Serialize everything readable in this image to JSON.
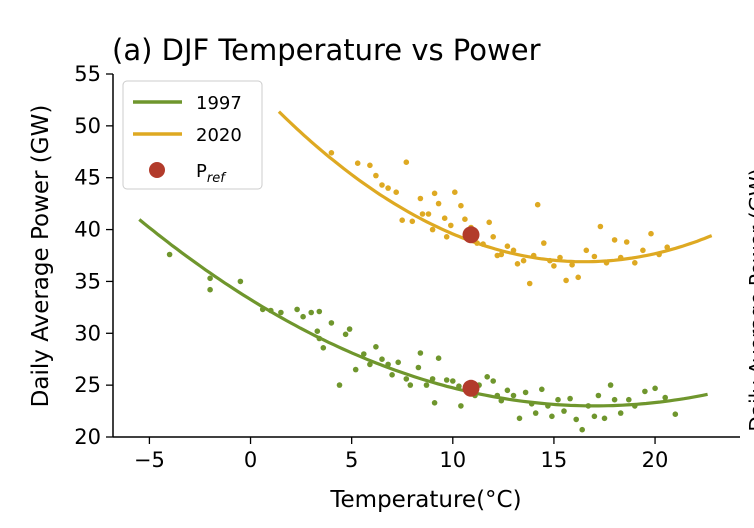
{
  "chart_data": {
    "type": "scatter",
    "title": "(a) DJF Temperature vs Power",
    "xlabel": "Temperature(°C)",
    "ylabel": "Daily Average Power (GW)",
    "xlim": [
      -6.8,
      24.2
    ],
    "ylim": [
      20,
      55
    ],
    "xticks": [
      -5,
      0,
      5,
      10,
      15,
      20
    ],
    "yticks": [
      20,
      25,
      30,
      35,
      40,
      45,
      50,
      55
    ],
    "grid": false,
    "legend_position": "top-left",
    "clipped_adjacent_text": "Daily Average Power (GW)",
    "series": [
      {
        "name": "1997",
        "color": "#6f962d",
        "fit": {
          "x_range": [
            -5.5,
            22.6
          ],
          "vertex_x": 17.0,
          "vertex_y": 23.0,
          "a": 0.0355
        },
        "points": [
          [
            -4,
            37.6
          ],
          [
            -2,
            35.3
          ],
          [
            -2,
            34.2
          ],
          [
            -0.5,
            35.0
          ],
          [
            0.6,
            32.3
          ],
          [
            1,
            32.2
          ],
          [
            1.5,
            32.0
          ],
          [
            2.3,
            32.3
          ],
          [
            2.6,
            31.6
          ],
          [
            3.0,
            32.0
          ],
          [
            3.3,
            30.2
          ],
          [
            3.4,
            32.1
          ],
          [
            3.4,
            29.5
          ],
          [
            3.6,
            28.6
          ],
          [
            4.0,
            31.0
          ],
          [
            4.4,
            25.0
          ],
          [
            4.7,
            29.9
          ],
          [
            4.9,
            30.4
          ],
          [
            5.2,
            26.5
          ],
          [
            5.6,
            28.0
          ],
          [
            5.9,
            27.0
          ],
          [
            6.2,
            28.7
          ],
          [
            6.5,
            27.5
          ],
          [
            6.8,
            27.0
          ],
          [
            7.0,
            26.0
          ],
          [
            7.3,
            27.2
          ],
          [
            7.7,
            25.6
          ],
          [
            7.9,
            25.0
          ],
          [
            8.3,
            26.7
          ],
          [
            8.4,
            28.1
          ],
          [
            8.7,
            25.0
          ],
          [
            9.0,
            25.6
          ],
          [
            9.1,
            23.3
          ],
          [
            9.3,
            27.6
          ],
          [
            9.7,
            25.5
          ],
          [
            10.0,
            25.4
          ],
          [
            10.3,
            24.9
          ],
          [
            10.4,
            23.0
          ],
          [
            10.7,
            25.0
          ],
          [
            11.1,
            24.0
          ],
          [
            11.3,
            25.0
          ],
          [
            11.7,
            25.8
          ],
          [
            12.0,
            25.4
          ],
          [
            12.2,
            24.0
          ],
          [
            12.4,
            23.5
          ],
          [
            12.7,
            24.5
          ],
          [
            13.0,
            24.0
          ],
          [
            13.3,
            21.8
          ],
          [
            13.6,
            24.3
          ],
          [
            13.9,
            23.2
          ],
          [
            14.1,
            22.3
          ],
          [
            14.4,
            24.6
          ],
          [
            14.7,
            23.0
          ],
          [
            14.9,
            22.0
          ],
          [
            15.2,
            23.6
          ],
          [
            15.5,
            22.5
          ],
          [
            15.8,
            23.7
          ],
          [
            16.1,
            21.7
          ],
          [
            16.4,
            20.7
          ],
          [
            16.7,
            23.0
          ],
          [
            17.0,
            22.0
          ],
          [
            17.2,
            24.0
          ],
          [
            17.5,
            21.8
          ],
          [
            17.8,
            25.0
          ],
          [
            18.0,
            23.6
          ],
          [
            18.3,
            22.3
          ],
          [
            18.7,
            23.6
          ],
          [
            19.0,
            23.0
          ],
          [
            19.5,
            24.4
          ],
          [
            20.0,
            24.7
          ],
          [
            20.5,
            23.8
          ],
          [
            21.0,
            22.2
          ]
        ]
      },
      {
        "name": "2020",
        "color": "#dea922",
        "fit": {
          "x_range": [
            1.4,
            22.8
          ],
          "vertex_x": 16.5,
          "vertex_y": 36.9,
          "a": 0.0635
        },
        "points": [
          [
            4.0,
            47.4
          ],
          [
            5.3,
            46.4
          ],
          [
            5.9,
            46.2
          ],
          [
            6.2,
            45.2
          ],
          [
            6.5,
            44.3
          ],
          [
            6.8,
            44.0
          ],
          [
            7.2,
            43.6
          ],
          [
            7.5,
            40.9
          ],
          [
            7.7,
            46.5
          ],
          [
            8.0,
            40.8
          ],
          [
            8.4,
            43.0
          ],
          [
            8.5,
            41.5
          ],
          [
            8.8,
            41.5
          ],
          [
            9.0,
            40.0
          ],
          [
            9.1,
            43.5
          ],
          [
            9.3,
            42.5
          ],
          [
            9.6,
            41.1
          ],
          [
            9.7,
            39.3
          ],
          [
            9.9,
            40.4
          ],
          [
            10.1,
            43.6
          ],
          [
            10.4,
            42.3
          ],
          [
            10.6,
            41.0
          ],
          [
            10.9,
            40.2
          ],
          [
            11.2,
            38.7
          ],
          [
            11.5,
            38.6
          ],
          [
            11.8,
            40.7
          ],
          [
            12.0,
            39.3
          ],
          [
            12.2,
            37.5
          ],
          [
            12.4,
            37.6
          ],
          [
            12.7,
            38.4
          ],
          [
            13.0,
            38.0
          ],
          [
            13.2,
            36.7
          ],
          [
            13.5,
            37.0
          ],
          [
            13.8,
            34.8
          ],
          [
            14.0,
            37.5
          ],
          [
            14.2,
            42.4
          ],
          [
            14.5,
            38.7
          ],
          [
            14.8,
            37.0
          ],
          [
            15.0,
            36.5
          ],
          [
            15.3,
            37.3
          ],
          [
            15.6,
            35.1
          ],
          [
            15.9,
            36.6
          ],
          [
            16.2,
            35.4
          ],
          [
            16.6,
            38.0
          ],
          [
            17.0,
            37.4
          ],
          [
            17.3,
            40.3
          ],
          [
            17.6,
            36.8
          ],
          [
            18.0,
            39.0
          ],
          [
            18.3,
            37.3
          ],
          [
            18.6,
            38.8
          ],
          [
            19.0,
            36.8
          ],
          [
            19.4,
            38.0
          ],
          [
            19.8,
            39.6
          ],
          [
            20.2,
            37.6
          ],
          [
            20.6,
            38.3
          ]
        ]
      },
      {
        "name": "P_ref",
        "legend_label": "P",
        "legend_label_sub": "ref",
        "color": "#b23b2b",
        "points": [
          [
            10.9,
            39.5
          ],
          [
            10.9,
            24.7
          ]
        ]
      }
    ]
  }
}
